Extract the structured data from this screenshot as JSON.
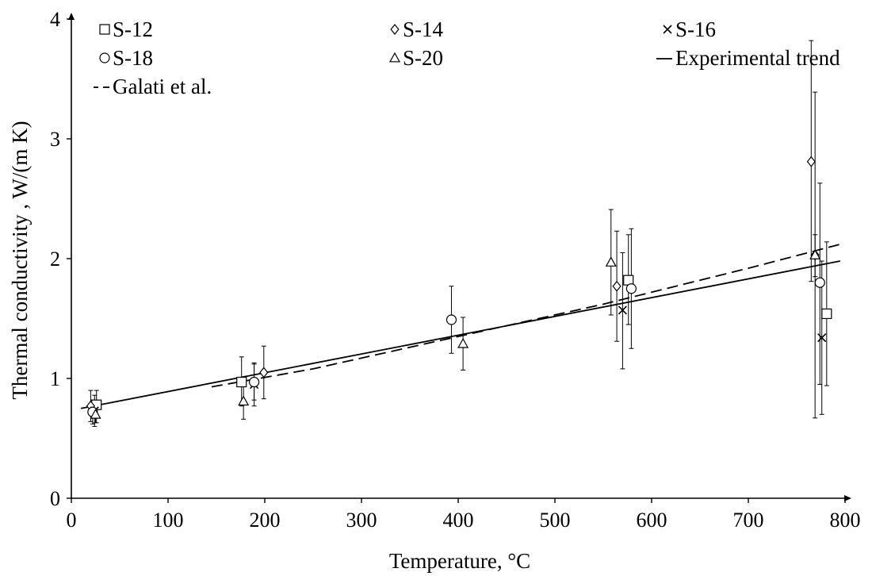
{
  "chart_data": {
    "type": "scatter",
    "title": "",
    "xlabel": "Temperature, °C",
    "ylabel": "Thermal conductivity , W/(m K)",
    "xlim": [
      0,
      800
    ],
    "ylim": [
      0,
      4
    ],
    "xticks": [
      0,
      100,
      200,
      300,
      400,
      500,
      600,
      700,
      800
    ],
    "yticks": [
      0,
      1,
      2,
      3,
      4
    ],
    "grid": false,
    "legend_position": "top",
    "series": [
      {
        "name": "S-12",
        "marker": "square",
        "points": [
          {
            "x": 26,
            "y": 0.78,
            "lo": 0.63,
            "hi": 0.9
          },
          {
            "x": 176,
            "y": 0.97,
            "lo": 0.77,
            "hi": 1.18
          },
          {
            "x": 576,
            "y": 1.82,
            "lo": 1.45,
            "hi": 2.2
          },
          {
            "x": 781,
            "y": 1.54,
            "lo": 0.94,
            "hi": 2.14
          }
        ]
      },
      {
        "name": "S-14",
        "marker": "diamond",
        "points": [
          {
            "x": 20,
            "y": 0.77,
            "lo": 0.64,
            "hi": 0.9
          },
          {
            "x": 199,
            "y": 1.05,
            "lo": 0.83,
            "hi": 1.27
          },
          {
            "x": 564,
            "y": 1.77,
            "lo": 1.31,
            "hi": 2.23
          },
          {
            "x": 765,
            "y": 2.81,
            "lo": 1.81,
            "hi": 3.82
          },
          {
            "x": 769,
            "y": 2.03,
            "lo": 0.67,
            "hi": 3.39
          }
        ]
      },
      {
        "name": "S-16",
        "marker": "cross",
        "points": [
          {
            "x": 24,
            "y": 0.73,
            "lo": 0.6,
            "hi": 0.86
          },
          {
            "x": 189,
            "y": 0.95,
            "lo": 0.77,
            "hi": 1.12
          },
          {
            "x": 570,
            "y": 1.57,
            "lo": 1.08,
            "hi": 2.05
          },
          {
            "x": 776,
            "y": 1.34,
            "lo": 0.7,
            "hi": 1.98
          }
        ]
      },
      {
        "name": "S-18",
        "marker": "circle",
        "points": [
          {
            "x": 22,
            "y": 0.72,
            "lo": 0.62,
            "hi": 0.82
          },
          {
            "x": 189,
            "y": 0.97,
            "lo": 0.82,
            "hi": 1.13
          },
          {
            "x": 393,
            "y": 1.49,
            "lo": 1.21,
            "hi": 1.77
          },
          {
            "x": 579,
            "y": 1.75,
            "lo": 1.25,
            "hi": 2.25
          },
          {
            "x": 774,
            "y": 1.8,
            "lo": 0.95,
            "hi": 2.63
          }
        ]
      },
      {
        "name": "S-20",
        "marker": "triangle",
        "points": [
          {
            "x": 25,
            "y": 0.7,
            "lo": 0.63,
            "hi": 0.78
          },
          {
            "x": 178,
            "y": 0.81,
            "lo": 0.66,
            "hi": 0.95
          },
          {
            "x": 405,
            "y": 1.29,
            "lo": 1.07,
            "hi": 1.51
          },
          {
            "x": 558,
            "y": 1.97,
            "lo": 1.53,
            "hi": 2.41
          },
          {
            "x": 769,
            "y": 2.03,
            "lo": 1.85,
            "hi": 2.2
          }
        ]
      }
    ],
    "lines": [
      {
        "name": "Experimental trend",
        "style": "solid",
        "x": [
          10,
          795
        ],
        "y": [
          0.75,
          1.98
        ]
      },
      {
        "name": "Galati et al.",
        "style": "dashed",
        "x": [
          145,
          250,
          400,
          550,
          700,
          795
        ],
        "y": [
          0.93,
          1.08,
          1.35,
          1.62,
          1.92,
          2.12
        ]
      }
    ]
  }
}
